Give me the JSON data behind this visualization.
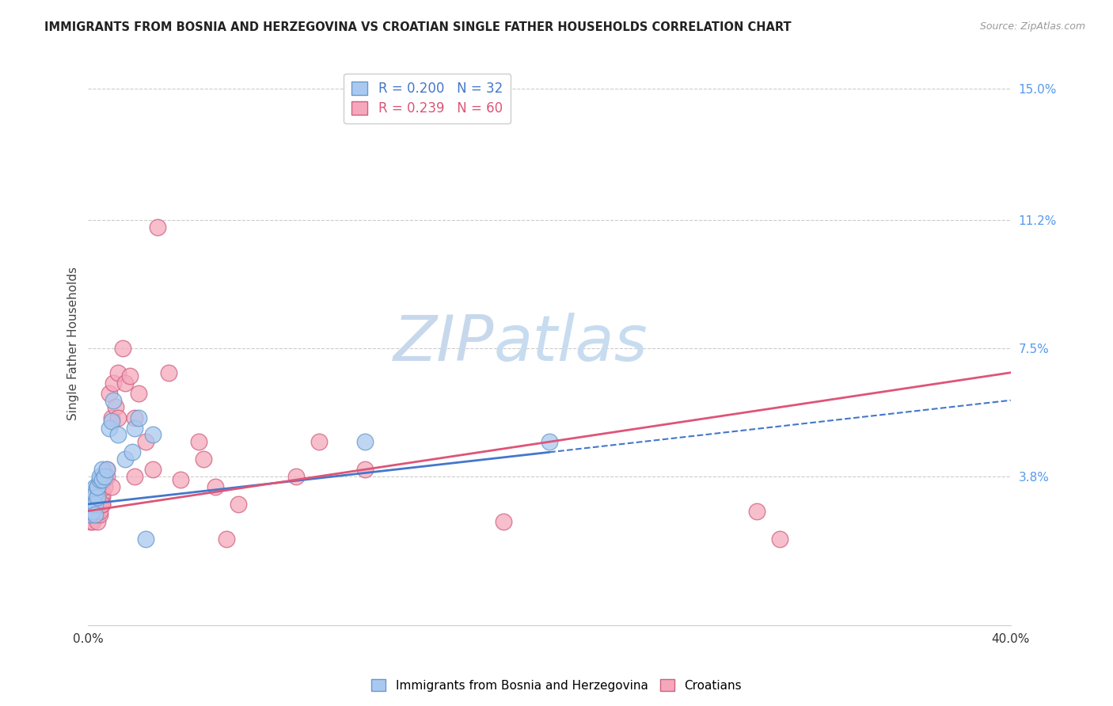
{
  "title": "IMMIGRANTS FROM BOSNIA AND HERZEGOVINA VS CROATIAN SINGLE FATHER HOUSEHOLDS CORRELATION CHART",
  "source_text": "Source: ZipAtlas.com",
  "ylabel": "Single Father Households",
  "xlim": [
    0.0,
    0.4
  ],
  "ylim": [
    -0.005,
    0.158
  ],
  "yticks": [
    0.038,
    0.075,
    0.112,
    0.15
  ],
  "ytick_labels": [
    "3.8%",
    "7.5%",
    "11.2%",
    "15.0%"
  ],
  "watermark_zip": "ZIP",
  "watermark_atlas": "atlas",
  "series1_color": "#aac9f0",
  "series1_edge_color": "#6699cc",
  "series2_color": "#f5a8bc",
  "series2_edge_color": "#d06080",
  "line1_color": "#4477cc",
  "line2_color": "#dd5577",
  "background_color": "#ffffff",
  "grid_color": "#cccccc",
  "series1_x": [
    0.001,
    0.001,
    0.001,
    0.002,
    0.002,
    0.002,
    0.002,
    0.003,
    0.003,
    0.003,
    0.003,
    0.004,
    0.004,
    0.004,
    0.005,
    0.005,
    0.006,
    0.006,
    0.007,
    0.008,
    0.009,
    0.01,
    0.011,
    0.013,
    0.016,
    0.019,
    0.02,
    0.022,
    0.025,
    0.028,
    0.12,
    0.2
  ],
  "series1_y": [
    0.03,
    0.033,
    0.027,
    0.032,
    0.033,
    0.03,
    0.028,
    0.035,
    0.033,
    0.03,
    0.027,
    0.035,
    0.032,
    0.035,
    0.037,
    0.038,
    0.04,
    0.037,
    0.038,
    0.04,
    0.052,
    0.054,
    0.06,
    0.05,
    0.043,
    0.045,
    0.052,
    0.055,
    0.02,
    0.05,
    0.048,
    0.048
  ],
  "series2_x": [
    0.001,
    0.001,
    0.001,
    0.001,
    0.002,
    0.002,
    0.002,
    0.002,
    0.002,
    0.003,
    0.003,
    0.003,
    0.003,
    0.003,
    0.004,
    0.004,
    0.004,
    0.004,
    0.005,
    0.005,
    0.005,
    0.005,
    0.005,
    0.006,
    0.006,
    0.006,
    0.006,
    0.007,
    0.007,
    0.008,
    0.008,
    0.009,
    0.01,
    0.01,
    0.011,
    0.012,
    0.013,
    0.013,
    0.015,
    0.016,
    0.018,
    0.02,
    0.02,
    0.022,
    0.025,
    0.028,
    0.03,
    0.035,
    0.04,
    0.048,
    0.05,
    0.055,
    0.06,
    0.065,
    0.09,
    0.1,
    0.12,
    0.18,
    0.29,
    0.3
  ],
  "series2_y": [
    0.025,
    0.027,
    0.028,
    0.03,
    0.028,
    0.03,
    0.028,
    0.027,
    0.025,
    0.028,
    0.03,
    0.032,
    0.03,
    0.027,
    0.03,
    0.03,
    0.027,
    0.025,
    0.03,
    0.027,
    0.028,
    0.03,
    0.03,
    0.032,
    0.03,
    0.033,
    0.03,
    0.037,
    0.035,
    0.04,
    0.038,
    0.062,
    0.055,
    0.035,
    0.065,
    0.058,
    0.055,
    0.068,
    0.075,
    0.065,
    0.067,
    0.055,
    0.038,
    0.062,
    0.048,
    0.04,
    0.11,
    0.068,
    0.037,
    0.048,
    0.043,
    0.035,
    0.02,
    0.03,
    0.038,
    0.048,
    0.04,
    0.025,
    0.028,
    0.02
  ],
  "legend1_r": "0.200",
  "legend1_n": "32",
  "legend2_r": "0.239",
  "legend2_n": "60",
  "legend1_label": "Immigrants from Bosnia and Herzegovina",
  "legend2_label": "Croatians"
}
